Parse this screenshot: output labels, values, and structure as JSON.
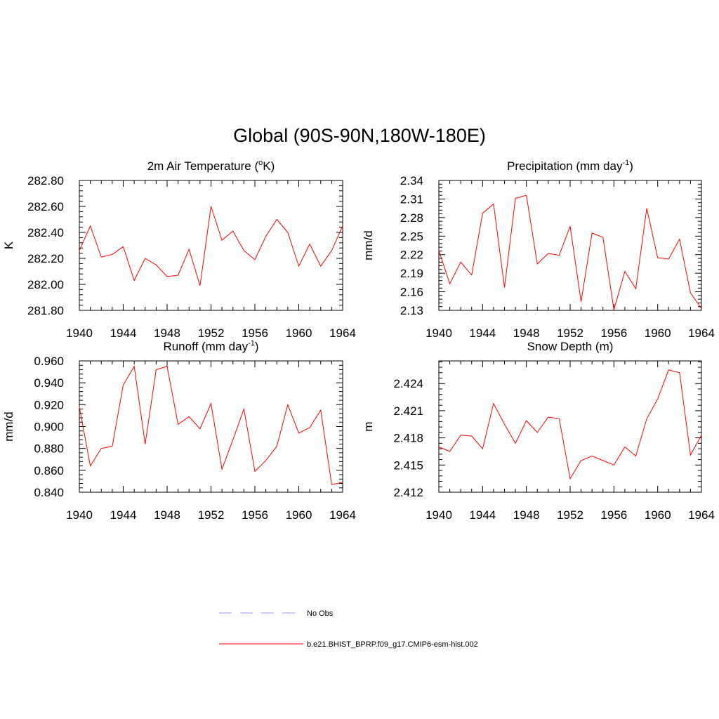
{
  "figure": {
    "title": "Global (90S-90N,180W-180E)"
  },
  "colors": {
    "model_line": "#ff0000",
    "obs_line": "#9999ff",
    "axis": "#000000"
  },
  "legend": {
    "entries": [
      {
        "label": "No Obs",
        "style": "dashed",
        "color": "#9999ff"
      },
      {
        "label": "b.e21.BHIST_BPRP.f09_g17.CMIP6-esm-hist.002",
        "style": "solid",
        "color": "#ff0000"
      }
    ]
  },
  "chart_data": [
    {
      "type": "line",
      "title": {
        "pre": "2m Air Temperature (",
        "sup": "o",
        "post": "K)"
      },
      "ylabel": "K",
      "xlim": [
        1940,
        1964
      ],
      "ylim": [
        281.8,
        282.8
      ],
      "xticks": [
        1940,
        1944,
        1948,
        1952,
        1956,
        1960,
        1964
      ],
      "yticks": [
        "281.80",
        "282.00",
        "282.20",
        "282.40",
        "282.60",
        "282.80"
      ],
      "x": [
        1940,
        1941,
        1942,
        1943,
        1944,
        1945,
        1946,
        1947,
        1948,
        1949,
        1950,
        1951,
        1952,
        1953,
        1954,
        1955,
        1956,
        1957,
        1958,
        1959,
        1960,
        1961,
        1962,
        1963,
        1964
      ],
      "series": [
        {
          "values": [
            282.26,
            282.45,
            282.21,
            282.23,
            282.29,
            282.03,
            282.2,
            282.15,
            282.06,
            282.07,
            282.27,
            281.99,
            282.6,
            282.34,
            282.41,
            282.26,
            282.19,
            282.37,
            282.5,
            282.4,
            282.14,
            282.31,
            282.14,
            282.26,
            282.45
          ]
        }
      ]
    },
    {
      "type": "line",
      "title": {
        "pre": "Precipitation (mm day",
        "sup": "-1",
        "post": ")"
      },
      "ylabel": "mm/d",
      "xlim": [
        1940,
        1964
      ],
      "ylim": [
        2.13,
        2.34
      ],
      "xticks": [
        1940,
        1944,
        1948,
        1952,
        1956,
        1960,
        1964
      ],
      "yticks": [
        "2.13",
        "2.16",
        "2.19",
        "2.22",
        "2.25",
        "2.28",
        "2.31",
        "2.34"
      ],
      "x": [
        1940,
        1941,
        1942,
        1943,
        1944,
        1945,
        1946,
        1947,
        1948,
        1949,
        1950,
        1951,
        1952,
        1953,
        1954,
        1955,
        1956,
        1957,
        1958,
        1959,
        1960,
        1961,
        1962,
        1963,
        1964
      ],
      "series": [
        {
          "values": [
            2.227,
            2.173,
            2.208,
            2.187,
            2.287,
            2.302,
            2.167,
            2.311,
            2.316,
            2.205,
            2.222,
            2.219,
            2.266,
            2.144,
            2.255,
            2.248,
            2.131,
            2.193,
            2.165,
            2.295,
            2.215,
            2.213,
            2.245,
            2.158,
            2.133
          ]
        }
      ]
    },
    {
      "type": "line",
      "title": {
        "pre": "Runoff (mm day",
        "sup": "-1",
        "post": ")"
      },
      "ylabel": "mm/d",
      "xlim": [
        1940,
        1964
      ],
      "ylim": [
        0.84,
        0.96
      ],
      "xticks": [
        1940,
        1944,
        1948,
        1952,
        1956,
        1960,
        1964
      ],
      "yticks": [
        "0.840",
        "0.860",
        "0.880",
        "0.900",
        "0.920",
        "0.940",
        "0.960"
      ],
      "x": [
        1940,
        1941,
        1942,
        1943,
        1944,
        1945,
        1946,
        1947,
        1948,
        1949,
        1950,
        1951,
        1952,
        1953,
        1954,
        1955,
        1956,
        1957,
        1958,
        1959,
        1960,
        1961,
        1962,
        1963,
        1964
      ],
      "series": [
        {
          "values": [
            0.918,
            0.864,
            0.88,
            0.882,
            0.938,
            0.955,
            0.884,
            0.952,
            0.955,
            0.902,
            0.909,
            0.898,
            0.921,
            0.861,
            0.888,
            0.916,
            0.859,
            0.869,
            0.882,
            0.92,
            0.894,
            0.899,
            0.915,
            0.847,
            0.849
          ]
        }
      ]
    },
    {
      "type": "line",
      "title": {
        "pre": "Snow Depth (m)",
        "sup": "",
        "post": ""
      },
      "ylabel": "m",
      "xlim": [
        1940,
        1964
      ],
      "ylim": [
        2.412,
        2.4265
      ],
      "xticks": [
        1940,
        1944,
        1948,
        1952,
        1956,
        1960,
        1964
      ],
      "yticks": [
        "2.412",
        "2.415",
        "2.418",
        "2.421",
        "2.424"
      ],
      "x": [
        1940,
        1941,
        1942,
        1943,
        1944,
        1945,
        1946,
        1947,
        1948,
        1949,
        1950,
        1951,
        1952,
        1953,
        1954,
        1955,
        1956,
        1957,
        1958,
        1959,
        1960,
        1961,
        1962,
        1963,
        1964
      ],
      "series": [
        {
          "values": [
            2.417,
            2.4165,
            2.4183,
            2.4182,
            2.4168,
            2.4218,
            2.4195,
            2.4174,
            2.4199,
            2.4186,
            2.4203,
            2.4201,
            2.4135,
            2.4155,
            2.416,
            2.4155,
            2.415,
            2.417,
            2.416,
            2.4201,
            2.4223,
            2.4255,
            2.4252,
            2.4161,
            2.4183
          ]
        }
      ]
    }
  ]
}
